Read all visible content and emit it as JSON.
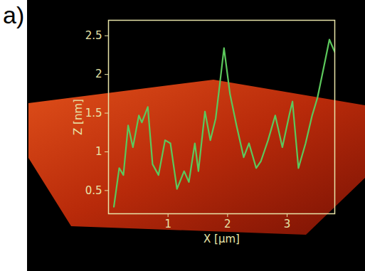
{
  "chart_data": {
    "type": "line",
    "title": "a)",
    "x_label": "X [μm]",
    "y_label": "Z [nm]",
    "x": [
      0.09,
      0.18,
      0.25,
      0.33,
      0.41,
      0.51,
      0.56,
      0.66,
      0.74,
      0.84,
      0.95,
      1.04,
      1.15,
      1.27,
      1.35,
      1.45,
      1.51,
      1.62,
      1.71,
      1.8,
      1.87,
      1.94,
      2.04,
      2.15,
      2.27,
      2.36,
      2.48,
      2.56,
      2.68,
      2.8,
      2.92,
      3.04,
      3.09,
      3.19,
      3.31,
      3.42,
      3.51,
      3.62,
      3.71,
      3.8
    ],
    "series": [
      {
        "name": "Z",
        "color": "#5cc85c",
        "values": [
          0.29,
          0.79,
          0.7,
          1.34,
          1.06,
          1.47,
          1.38,
          1.58,
          0.84,
          0.7,
          1.15,
          1.11,
          0.52,
          0.75,
          0.61,
          1.11,
          0.75,
          1.52,
          1.15,
          1.43,
          1.88,
          2.34,
          1.75,
          1.34,
          0.93,
          1.11,
          0.79,
          0.88,
          1.15,
          1.47,
          1.06,
          1.49,
          1.65,
          0.79,
          1.11,
          1.47,
          1.7,
          2.11,
          2.45,
          2.29
        ]
      }
    ],
    "xlim": [
      0,
      3.8
    ],
    "xticks": [
      1,
      2,
      3
    ],
    "ylim": [
      0.2,
      2.7
    ],
    "yticks": [
      0.5,
      1,
      1.5,
      2,
      2.5
    ],
    "grid": false
  }
}
